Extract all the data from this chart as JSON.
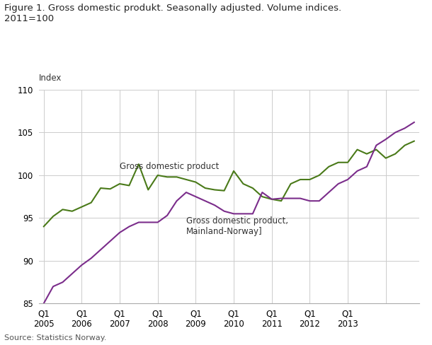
{
  "title": "Figure 1. Gross domestic produkt. Seasonally adjusted. Volume indices.\n2011=100",
  "ylabel": "Index",
  "source": "Source: Statistics Norway.",
  "ylim": [
    85,
    110
  ],
  "yticks": [
    85,
    90,
    95,
    100,
    105,
    110
  ],
  "gdp_color": "#4a7a19",
  "mainland_color": "#7b2d8b",
  "gdp_label": "Gross domestic product",
  "mainland_label": "Gross domestic product,\nMainland-Norway]",
  "gdp_ann_x": 8,
  "gdp_ann_y": 100.5,
  "mainland_ann_x": 15,
  "mainland_ann_y": 95.2,
  "gdp_values": [
    94.0,
    95.2,
    96.0,
    95.8,
    96.3,
    96.8,
    98.5,
    98.4,
    99.0,
    98.8,
    101.3,
    98.3,
    100.0,
    99.8,
    99.8,
    99.5,
    99.2,
    98.5,
    98.3,
    98.2,
    100.5,
    99.0,
    98.5,
    97.5,
    97.2,
    97.0,
    99.0,
    99.5,
    99.5,
    100.0,
    101.0,
    101.5,
    101.5,
    103.0,
    102.5,
    103.0,
    102.0,
    102.5,
    103.5,
    104.0
  ],
  "mainland_values": [
    85.0,
    87.0,
    87.5,
    88.5,
    89.5,
    90.3,
    91.3,
    92.3,
    93.3,
    94.0,
    94.5,
    94.5,
    94.5,
    95.3,
    97.0,
    98.0,
    97.5,
    97.0,
    96.5,
    95.8,
    95.5,
    95.5,
    95.5,
    98.0,
    97.2,
    97.3,
    97.3,
    97.3,
    97.0,
    97.0,
    98.0,
    99.0,
    99.5,
    100.5,
    101.0,
    103.5,
    104.2,
    105.0,
    105.5,
    106.2
  ],
  "x_tick_positions": [
    0,
    4,
    8,
    12,
    16,
    20,
    24,
    28,
    32,
    36
  ],
  "x_tick_labels": [
    "Q1\n2005",
    "Q1\n2006",
    "Q1\n2007",
    "Q1\n2008",
    "Q1\n2009",
    "Q1\n2010",
    "Q1\n2011",
    "Q1\n2012",
    "Q1\n2013",
    ""
  ]
}
